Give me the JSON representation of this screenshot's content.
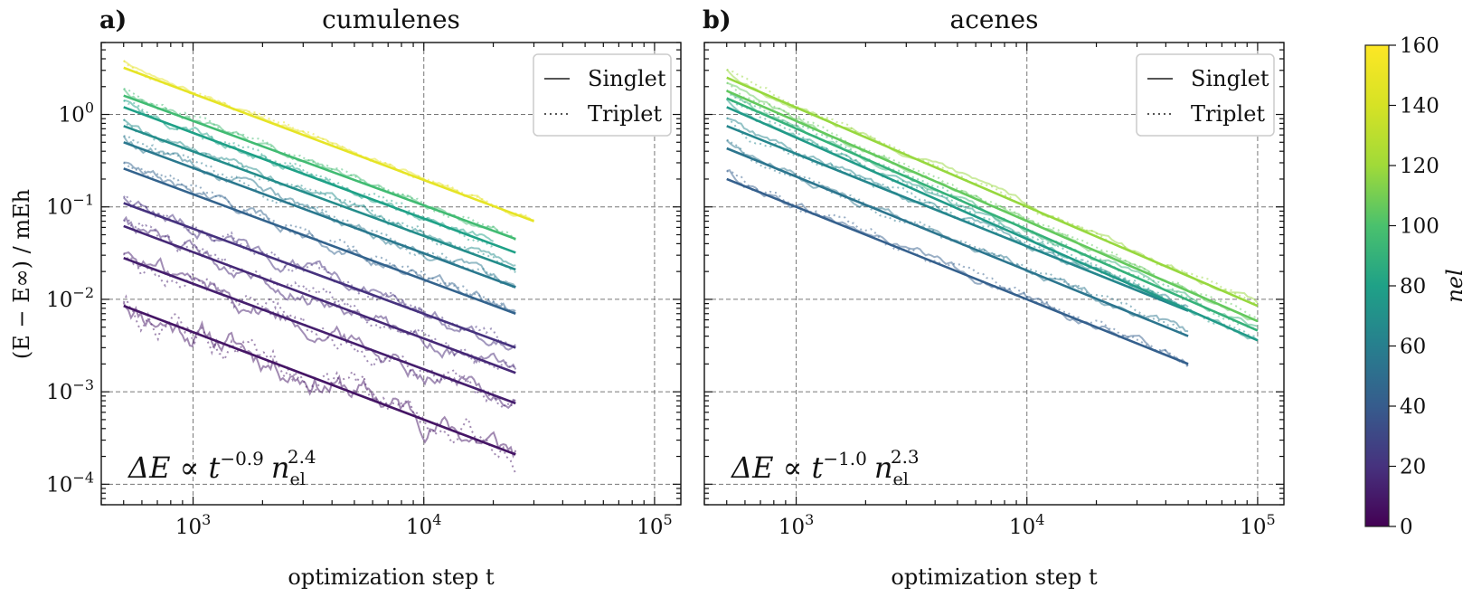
{
  "figure": {
    "ylabel": "(E − E∞) / mEh",
    "colorbar": {
      "label": "n_el",
      "label_display": "nel",
      "ticks": [
        0,
        20,
        40,
        60,
        80,
        100,
        120,
        140,
        160
      ],
      "min": 0,
      "max": 160,
      "colormap": "viridis"
    }
  },
  "chart_data": [
    {
      "type": "line",
      "panel_label": "a)",
      "title": "cumulenes",
      "xlabel": "optimization step t",
      "xscale": "log",
      "yscale": "log",
      "xlim": [
        400,
        130000
      ],
      "ylim": [
        6e-05,
        6
      ],
      "xticks": [
        "10^3",
        "10^4",
        "10^5"
      ],
      "yticks": [
        "10^-4",
        "10^-3",
        "10^-2",
        "10^-1",
        "10^0"
      ],
      "grid": true,
      "legend": {
        "position": "top-right",
        "entries": [
          "Singlet",
          "Triplet"
        ]
      },
      "annotation": {
        "text": "ΔE ∝ t^-0.9 n_el^2.4",
        "base": "ΔE ∝ t",
        "t_exp": "−0.9",
        "n": "n",
        "n_sub": "el",
        "n_exp": "2.4"
      },
      "series": [
        {
          "n_el": 8,
          "fit": {
            "x": [
              500,
              25000
            ],
            "y": [
              0.0085,
              0.00021
            ]
          },
          "data_end": 25000,
          "noise": 0.18
        },
        {
          "n_el": 12,
          "fit": {
            "x": [
              500,
              25000
            ],
            "y": [
              0.028,
              0.00075
            ]
          },
          "data_end": 25000,
          "noise": 0.13
        },
        {
          "n_el": 16,
          "fit": {
            "x": [
              500,
              25000
            ],
            "y": [
              0.062,
              0.0016
            ]
          },
          "data_end": 25000,
          "noise": 0.1
        },
        {
          "n_el": 20,
          "fit": {
            "x": [
              500,
              25000
            ],
            "y": [
              0.11,
              0.003
            ]
          },
          "data_end": 25000,
          "noise": 0.09
        },
        {
          "n_el": 44,
          "fit": {
            "x": [
              500,
              25000
            ],
            "y": [
              0.26,
              0.007
            ]
          },
          "data_end": 25000,
          "noise": 0.07
        },
        {
          "n_el": 56,
          "fit": {
            "x": [
              500,
              25000
            ],
            "y": [
              0.5,
              0.0135
            ]
          },
          "data_end": 25000,
          "noise": 0.06
        },
        {
          "n_el": 68,
          "fit": {
            "x": [
              500,
              25000
            ],
            "y": [
              0.75,
              0.021
            ]
          },
          "data_end": 25000,
          "noise": 0.05
        },
        {
          "n_el": 80,
          "fit": {
            "x": [
              500,
              25000
            ],
            "y": [
              1.2,
              0.032
            ]
          },
          "data_end": 20000,
          "noise": 0.05
        },
        {
          "n_el": 96,
          "fit": {
            "x": [
              500,
              25000
            ],
            "y": [
              1.6,
              0.045
            ]
          },
          "data_end": 25000,
          "noise": 0.04
        },
        {
          "n_el": 148,
          "fit": {
            "x": [
              500,
              30000
            ],
            "y": [
              3.2,
              0.07
            ]
          },
          "data_end": 30000,
          "noise": 0.03
        }
      ]
    },
    {
      "type": "line",
      "panel_label": "b)",
      "title": "acenes",
      "xlabel": "optimization step t",
      "xscale": "log",
      "yscale": "log",
      "xlim": [
        400,
        130000
      ],
      "ylim": [
        6e-05,
        6
      ],
      "xticks": [
        "10^3",
        "10^4",
        "10^5"
      ],
      "yticks": [
        "10^-4",
        "10^-3",
        "10^-2",
        "10^-1",
        "10^0"
      ],
      "grid": true,
      "legend": {
        "position": "top-right",
        "entries": [
          "Singlet",
          "Triplet"
        ]
      },
      "annotation": {
        "text": "ΔE ∝ t^-1.0 n_el^2.3",
        "base": "ΔE ∝ t",
        "t_exp": "−1.0",
        "n": "n",
        "n_sub": "el",
        "n_exp": "2.3"
      },
      "series": [
        {
          "n_el": 42,
          "fit": {
            "x": [
              500,
              50000
            ],
            "y": [
              0.2,
              0.002
            ]
          },
          "data_end": 50000,
          "noise": 0.06
        },
        {
          "n_el": 54,
          "fit": {
            "x": [
              500,
              50000
            ],
            "y": [
              0.43,
              0.004
            ]
          },
          "data_end": 50000,
          "noise": 0.05
        },
        {
          "n_el": 64,
          "fit": {
            "x": [
              500,
              50000
            ],
            "y": [
              0.75,
              0.0075
            ]
          },
          "data_end": 50000,
          "noise": 0.05
        },
        {
          "n_el": 76,
          "fit": {
            "x": [
              500,
              100000
            ],
            "y": [
              1.2,
              0.0036
            ]
          },
          "data_end": 100000,
          "noise": 0.04
        },
        {
          "n_el": 90,
          "fit": {
            "x": [
              500,
              100000
            ],
            "y": [
              1.5,
              0.0046
            ]
          },
          "data_end": 100000,
          "noise": 0.04
        },
        {
          "n_el": 106,
          "fit": {
            "x": [
              500,
              100000
            ],
            "y": [
              1.8,
              0.0058
            ]
          },
          "data_end": 100000,
          "noise": 0.04
        },
        {
          "n_el": 118,
          "fit": {
            "x": [
              500,
              100000
            ],
            "y": [
              2.5,
              0.0085
            ]
          },
          "data_end": 100000,
          "noise": 0.04
        }
      ]
    }
  ]
}
